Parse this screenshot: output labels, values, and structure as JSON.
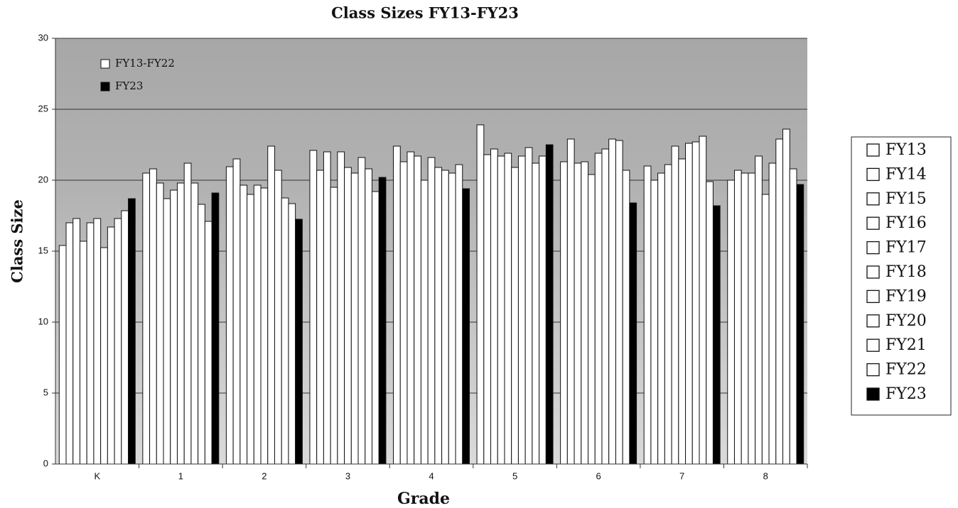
{
  "chart_data": {
    "type": "bar",
    "title": "Class Sizes FY13-FY23",
    "x_label": "Grade",
    "y_label": "Class Size",
    "categories": [
      "K",
      "1",
      "2",
      "3",
      "4",
      "5",
      "6",
      "7",
      "8"
    ],
    "series": [
      {
        "name": "FY13",
        "color": "#ffffff",
        "values": [
          15.4,
          20.5,
          20.95,
          22.1,
          22.4,
          23.9,
          21.3,
          21.0,
          20.0
        ]
      },
      {
        "name": "FY14",
        "color": "#ffffff",
        "values": [
          17.0,
          20.8,
          21.5,
          20.7,
          21.3,
          21.8,
          22.9,
          20.0,
          20.7
        ]
      },
      {
        "name": "FY15",
        "color": "#ffffff",
        "values": [
          17.3,
          19.8,
          19.65,
          22.0,
          22.0,
          22.2,
          21.2,
          20.5,
          20.5
        ]
      },
      {
        "name": "FY16",
        "color": "#ffffff",
        "values": [
          15.7,
          18.7,
          19.0,
          19.5,
          21.7,
          21.7,
          21.3,
          21.1,
          20.5
        ]
      },
      {
        "name": "FY17",
        "color": "#ffffff",
        "values": [
          17.0,
          19.3,
          19.65,
          22.0,
          20.0,
          21.9,
          20.4,
          22.4,
          21.7
        ]
      },
      {
        "name": "FY18",
        "color": "#ffffff",
        "values": [
          17.3,
          19.8,
          19.45,
          20.9,
          21.6,
          20.9,
          21.9,
          21.5,
          19.0
        ]
      },
      {
        "name": "FY19",
        "color": "#ffffff",
        "values": [
          15.25,
          21.2,
          22.4,
          20.5,
          20.9,
          21.7,
          22.2,
          22.6,
          21.2
        ]
      },
      {
        "name": "FY20",
        "color": "#ffffff",
        "values": [
          16.7,
          19.8,
          20.7,
          21.6,
          20.7,
          22.3,
          22.9,
          22.7,
          22.9
        ]
      },
      {
        "name": "FY21",
        "color": "#ffffff",
        "values": [
          17.3,
          18.3,
          18.75,
          20.8,
          20.5,
          21.2,
          22.8,
          23.1,
          23.6
        ]
      },
      {
        "name": "FY22",
        "color": "#ffffff",
        "values": [
          17.85,
          17.1,
          18.35,
          19.2,
          21.1,
          21.7,
          20.7,
          19.9,
          20.8
        ]
      },
      {
        "name": "FY23",
        "color": "#000000",
        "values": [
          18.7,
          19.1,
          17.25,
          20.2,
          19.4,
          22.5,
          18.4,
          18.2,
          19.7
        ]
      }
    ],
    "inner_legend": [
      {
        "label": "FY13-FY22",
        "color": "#ffffff"
      },
      {
        "label": "FY23",
        "color": "#000000"
      }
    ],
    "ylim": [
      0,
      30
    ],
    "yticks": [
      0,
      5,
      10,
      15,
      20,
      25,
      30
    ],
    "grid": true,
    "legend": "right"
  }
}
